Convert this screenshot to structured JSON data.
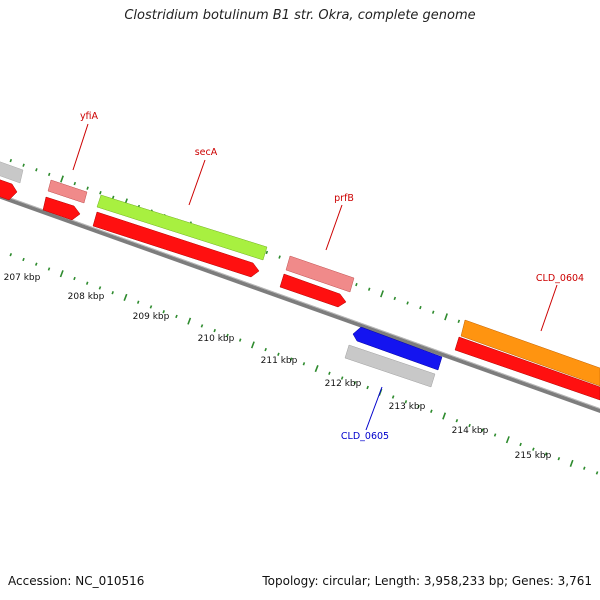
{
  "title": "Clostridium botulinum B1 str. Okra, complete genome",
  "accession": "Accession: NC_010516",
  "summary": "Topology: circular; Length: 3,958,233 bp; Genes: 3,761",
  "colors": {
    "backbone": "#7d7d7d",
    "tick": "#2e8b2e",
    "label_forward": "#cc0000",
    "label_reverse": "#0000cc",
    "cds_red": "#ff1010",
    "gray": "#c8c8c8",
    "pink": "#f08a8a",
    "lime": "#a8f040",
    "orange": "#ff9410",
    "blue": "#1414f0"
  },
  "kbp_labels": [
    "207 kbp",
    "208 kbp",
    "209 kbp",
    "210 kbp",
    "211 kbp",
    "212 kbp",
    "213 kbp",
    "214 kbp",
    "215 kbp"
  ],
  "gene_labels": [
    {
      "text": "yfiA",
      "strand": "forward"
    },
    {
      "text": "secA",
      "strand": "forward"
    },
    {
      "text": "prfB",
      "strand": "forward"
    },
    {
      "text": "CLD_0604",
      "strand": "forward"
    },
    {
      "text": "CLD_0605",
      "strand": "reverse"
    }
  ]
}
